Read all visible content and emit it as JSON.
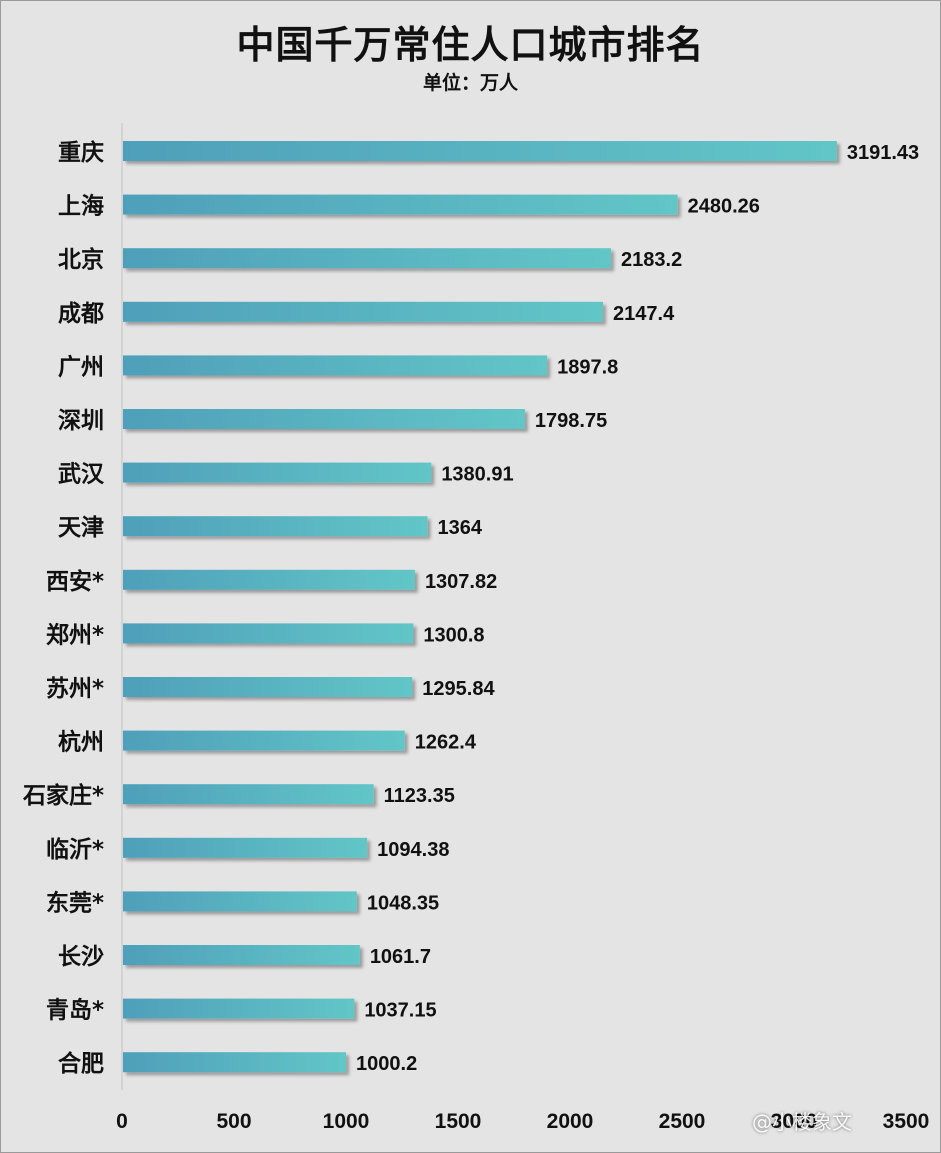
{
  "title": "中国千万常住人口城市排名",
  "subtitle": "单位：万人",
  "watermark": "@小楼象文",
  "colors": {
    "bar_left": "#4f9fba",
    "bar_right": "#62c6c7",
    "background": "#e4e4e4"
  },
  "chart_data": {
    "type": "bar",
    "orientation": "horizontal",
    "categories": [
      "重庆",
      "上海",
      "北京",
      "成都",
      "广州",
      "深圳",
      "武汉",
      "天津",
      "西安*",
      "郑州*",
      "苏州*",
      "杭州",
      "石家庄*",
      "临沂*",
      "东莞*",
      "长沙",
      "青岛*",
      "合肥"
    ],
    "values": [
      3191.43,
      2480.26,
      2183.2,
      2147.4,
      1897.8,
      1798.75,
      1380.91,
      1364,
      1307.82,
      1300.8,
      1295.84,
      1262.4,
      1123.35,
      1094.38,
      1048.35,
      1061.7,
      1037.15,
      1000.2
    ],
    "value_labels": [
      "3191.43",
      "2480.26",
      "2183.2",
      "2147.4",
      "1897.8",
      "1798.75",
      "1380.91",
      "1364",
      "1307.82",
      "1300.8",
      "1295.84",
      "1262.4",
      "1123.35",
      "1094.38",
      "1048.35",
      "1061.7",
      "1037.15",
      "1000.2"
    ],
    "xlim": [
      0,
      3500
    ],
    "xticks": [
      "0",
      "500",
      "1000",
      "1500",
      "2000",
      "2500",
      "3000",
      "3500"
    ],
    "grid": false,
    "legend": "none"
  }
}
